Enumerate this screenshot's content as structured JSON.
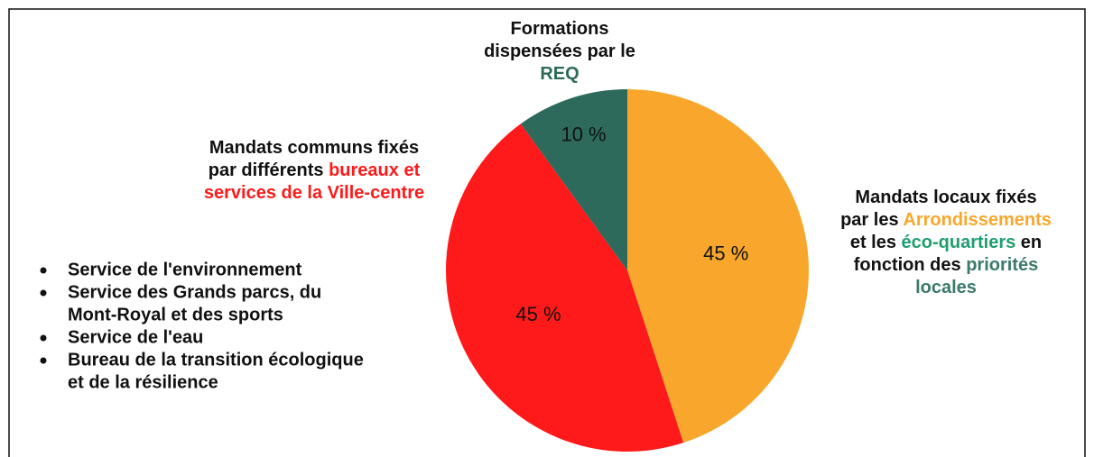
{
  "chart_data": {
    "type": "pie",
    "values": [
      45,
      45,
      10
    ],
    "value_labels": [
      "45 %",
      "45 %",
      "10 %"
    ],
    "colors": [
      "#f8a72c",
      "#fe1a1a",
      "#2d6a5b"
    ],
    "annotations": [
      {
        "lines": [
          [
            {
              "text": "Formations"
            }
          ],
          [
            {
              "text": "dispensées par le"
            }
          ],
          [
            {
              "text": "REQ",
              "color": "#2d6a5b"
            }
          ]
        ]
      },
      {
        "lines": [
          [
            {
              "text": "Mandats communs fixés"
            }
          ],
          [
            {
              "text": "par différents "
            },
            {
              "text": "bureaux et",
              "color": "#fe1a1a"
            }
          ],
          [
            {
              "text": "services de la Ville-centre",
              "color": "#fe1a1a"
            }
          ]
        ]
      },
      {
        "lines": [
          [
            {
              "text": "Mandats locaux fixés"
            }
          ],
          [
            {
              "text": "par les "
            },
            {
              "text": "Arrondissements",
              "color": "#f8a72c"
            }
          ],
          [
            {
              "text": "et les "
            },
            {
              "text": "éco-quartiers",
              "color": "#1f9e6e"
            },
            {
              "text": " en"
            }
          ],
          [
            {
              "text": "fonction des "
            },
            {
              "text": "priorités",
              "color": "#3a7a6a"
            }
          ],
          [
            {
              "text": "locales",
              "color": "#3a7a6a"
            }
          ]
        ]
      }
    ],
    "bullets": [
      [
        "Service de l'environnement"
      ],
      [
        "Service des Grands parcs, du",
        "Mont-Royal et des sports"
      ],
      [
        "Service de l'eau"
      ],
      [
        "Bureau de la transition écologique",
        "et de la résilience"
      ]
    ]
  }
}
